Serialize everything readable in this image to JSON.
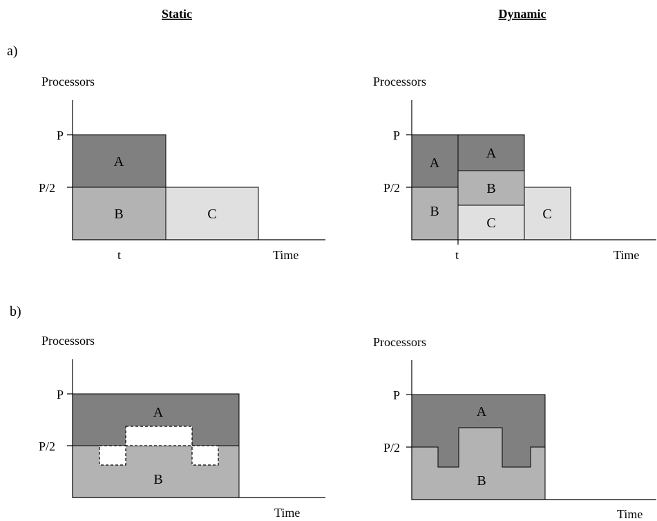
{
  "columns": {
    "static": "Static",
    "dynamic": "Dynamic"
  },
  "parts": {
    "a": "a)",
    "b": "b)"
  },
  "axis": {
    "y_title": "Processors",
    "x_title": "Time",
    "p": "P",
    "p_half": "P/2",
    "t": "t"
  },
  "blocks": {
    "a": "A",
    "b": "B",
    "c": "C"
  },
  "colors": {
    "a": "#808080",
    "b": "#b3b3b3",
    "c": "#e0e0e0",
    "hole": "#ffffff"
  }
}
